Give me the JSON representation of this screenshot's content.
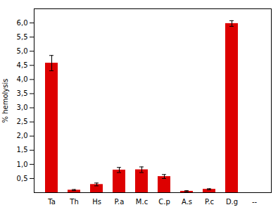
{
  "chart_data": {
    "type": "bar",
    "categories": [
      "Ta",
      "Th",
      "Hs",
      "P.a",
      "M.c",
      "C.p",
      "A.s",
      "P.c",
      "D.g",
      "--"
    ],
    "values": [
      4.58,
      0.09,
      0.29,
      0.8,
      0.81,
      0.57,
      0.05,
      0.12,
      5.98,
      0.0
    ],
    "errors": [
      0.27,
      0.02,
      0.05,
      0.09,
      0.1,
      0.07,
      0.02,
      0.02,
      0.1,
      0.0
    ],
    "color": "#dd0000",
    "ylabel": "% hemolysis",
    "ylim": [
      0,
      6.5
    ],
    "yticks": [
      {
        "value": 0.5,
        "label": "0,5"
      },
      {
        "value": 1.0,
        "label": "1,0"
      },
      {
        "value": 1.5,
        "label": "1,5"
      },
      {
        "value": 2.0,
        "label": "2,0"
      },
      {
        "value": 2.5,
        "label": "2,5"
      },
      {
        "value": 3.0,
        "label": "3,0"
      },
      {
        "value": 3.5,
        "label": "3,5"
      },
      {
        "value": 4.0,
        "label": "4,0"
      },
      {
        "value": 4.5,
        "label": "4,5"
      },
      {
        "value": 5.0,
        "label": "5,0"
      },
      {
        "value": 5.5,
        "label": "5,5"
      },
      {
        "value": 6.0,
        "label": "6,0"
      }
    ],
    "grid": false
  }
}
